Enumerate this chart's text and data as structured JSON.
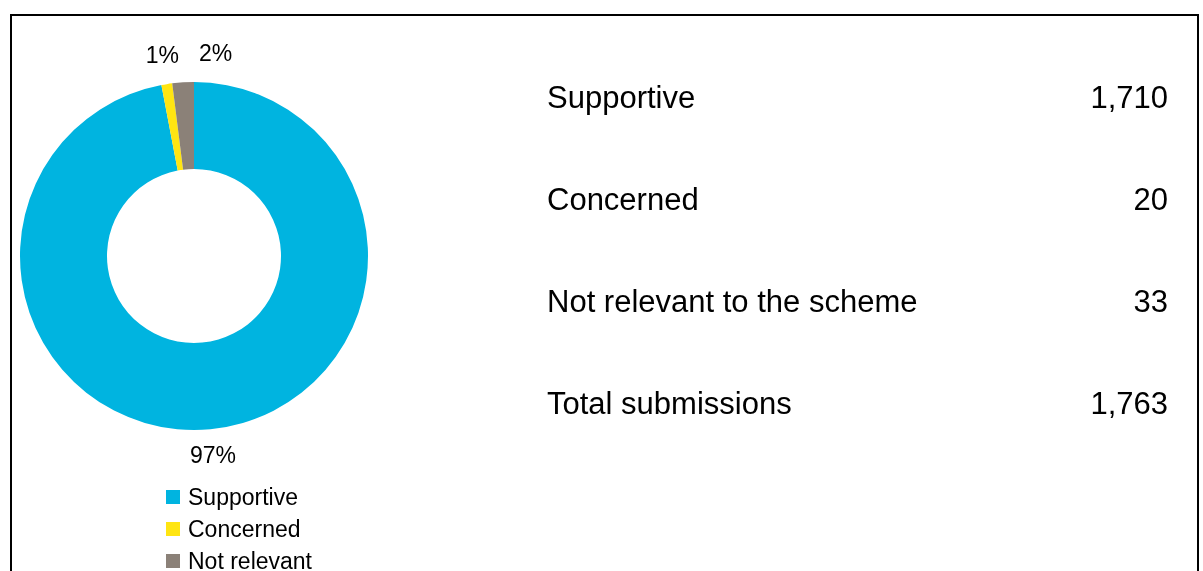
{
  "chart_data": [
    {
      "type": "donut",
      "categories": [
        "Supportive",
        "Concerned",
        "Not relevant"
      ],
      "values": [
        97,
        1,
        2
      ],
      "colors": [
        "#00b4e0",
        "#ffe512",
        "#8b8178"
      ],
      "value_labels": [
        "97%",
        "1%",
        "2%"
      ],
      "legend": "bottom"
    },
    {
      "type": "other",
      "annotations": [
        "Supportive",
        "1,710",
        "Concerned",
        "20",
        "Not relevant to the scheme",
        "33",
        "Total submissions",
        "1,763"
      ]
    }
  ]
}
